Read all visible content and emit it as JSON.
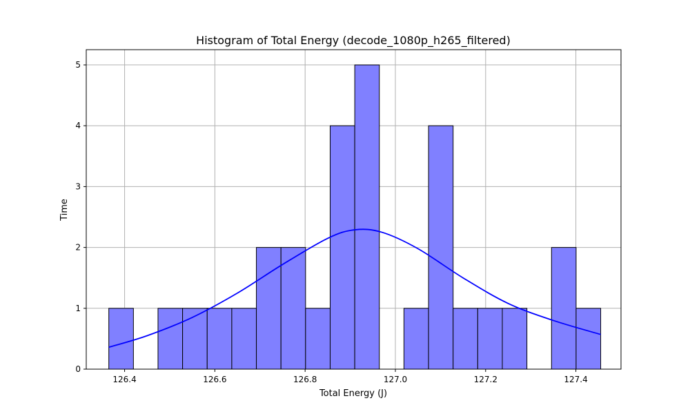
{
  "chart_data": {
    "type": "bar",
    "subtype": "histogram-with-kde",
    "title": "Histogram of Total Energy (decode_1080p_h265_filtered)",
    "xlabel": "Total Energy (J)",
    "ylabel": "Time",
    "xlim": [
      126.315,
      127.5
    ],
    "ylim": [
      0,
      5.25
    ],
    "xticks": [
      126.4,
      126.6,
      126.8,
      127.0,
      127.2,
      127.4
    ],
    "xtick_labels": [
      "126.4",
      "126.6",
      "126.8",
      "127.0",
      "127.2",
      "127.4"
    ],
    "yticks": [
      0,
      1,
      2,
      3,
      4,
      5
    ],
    "ytick_labels": [
      "0",
      "1",
      "2",
      "3",
      "4",
      "5"
    ],
    "grid": true,
    "bins": {
      "start": 126.365,
      "end": 127.455,
      "count": [
        1,
        0,
        1,
        1,
        1,
        1,
        2,
        2,
        1,
        4,
        5,
        0,
        1,
        4,
        1,
        1,
        1,
        0,
        2,
        1
      ]
    },
    "kde": {
      "x": [
        126.365,
        126.45,
        126.55,
        126.65,
        126.75,
        126.85,
        126.91,
        126.97,
        127.05,
        127.15,
        127.25,
        127.35,
        127.455
      ],
      "y": [
        0.36,
        0.55,
        0.85,
        1.25,
        1.72,
        2.15,
        2.29,
        2.25,
        1.98,
        1.5,
        1.08,
        0.8,
        0.57
      ]
    },
    "colors": {
      "bar_fill": "#8080ff",
      "bar_edge": "#000000",
      "kde_line": "#0000ff",
      "grid": "#b0b0b0"
    }
  }
}
